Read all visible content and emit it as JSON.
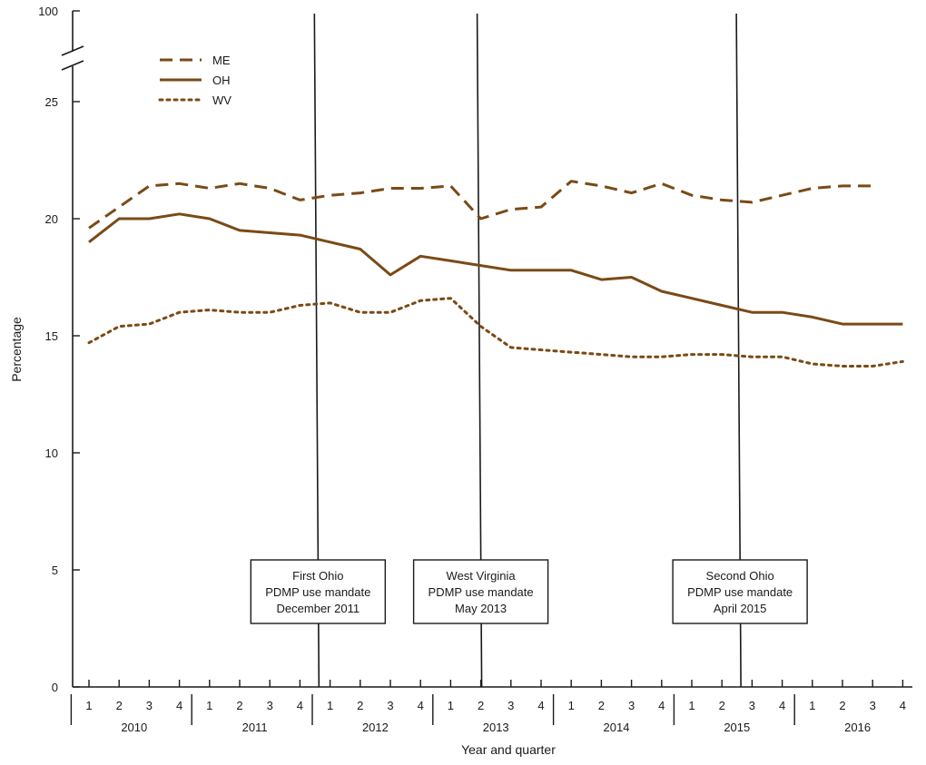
{
  "chart_data": {
    "type": "line",
    "ylabel": "Percentage",
    "xlabel": "Year and quarter",
    "y_ticks": [
      0,
      5,
      10,
      15,
      20,
      25
    ],
    "y_break_top_label": "100",
    "y_axis_break": true,
    "ylim": [
      0,
      25
    ],
    "years": [
      "2010",
      "2011",
      "2012",
      "2013",
      "2014",
      "2015",
      "2016"
    ],
    "quarters": [
      "1",
      "2",
      "3",
      "4"
    ],
    "series": [
      {
        "name": "ME",
        "style": "dashed",
        "values": [
          19.6,
          20.5,
          21.4,
          21.5,
          21.3,
          21.5,
          21.3,
          20.8,
          21.0,
          21.1,
          21.3,
          21.3,
          21.4,
          20.0,
          20.4,
          20.5,
          21.6,
          21.4,
          21.1,
          21.5,
          21.0,
          20.8,
          20.7,
          21.0,
          21.3,
          21.4,
          21.4,
          null
        ]
      },
      {
        "name": "OH",
        "style": "solid",
        "values": [
          19.0,
          20.0,
          20.0,
          20.2,
          20.0,
          19.5,
          19.4,
          19.3,
          19.0,
          18.7,
          17.6,
          18.4,
          18.2,
          18.0,
          17.8,
          17.8,
          17.8,
          17.4,
          17.5,
          16.9,
          16.6,
          16.3,
          16.0,
          16.0,
          15.8,
          15.5,
          15.5,
          15.5
        ]
      },
      {
        "name": "WV",
        "style": "dotted",
        "values": [
          14.7,
          15.4,
          15.5,
          16.0,
          16.1,
          16.0,
          16.0,
          16.3,
          16.4,
          16.0,
          16.0,
          16.5,
          16.6,
          15.4,
          14.5,
          14.4,
          14.3,
          14.2,
          14.1,
          14.1,
          14.2,
          14.2,
          14.1,
          14.1,
          13.8,
          13.7,
          13.7,
          13.9
        ]
      }
    ],
    "legend_position": "top-left",
    "annotations": [
      {
        "lines": [
          "First Ohio",
          "PDMP use mandate",
          "December 2011"
        ],
        "x_index": 7.6
      },
      {
        "lines": [
          "West Virginia",
          "PDMP use mandate",
          "May 2013"
        ],
        "x_index": 13
      },
      {
        "lines": [
          "Second Ohio",
          "PDMP use mandate",
          "April 2015"
        ],
        "x_index": 21.6
      }
    ],
    "colors": {
      "series": "#7a4a16",
      "axis": "#1a1a1a"
    }
  }
}
